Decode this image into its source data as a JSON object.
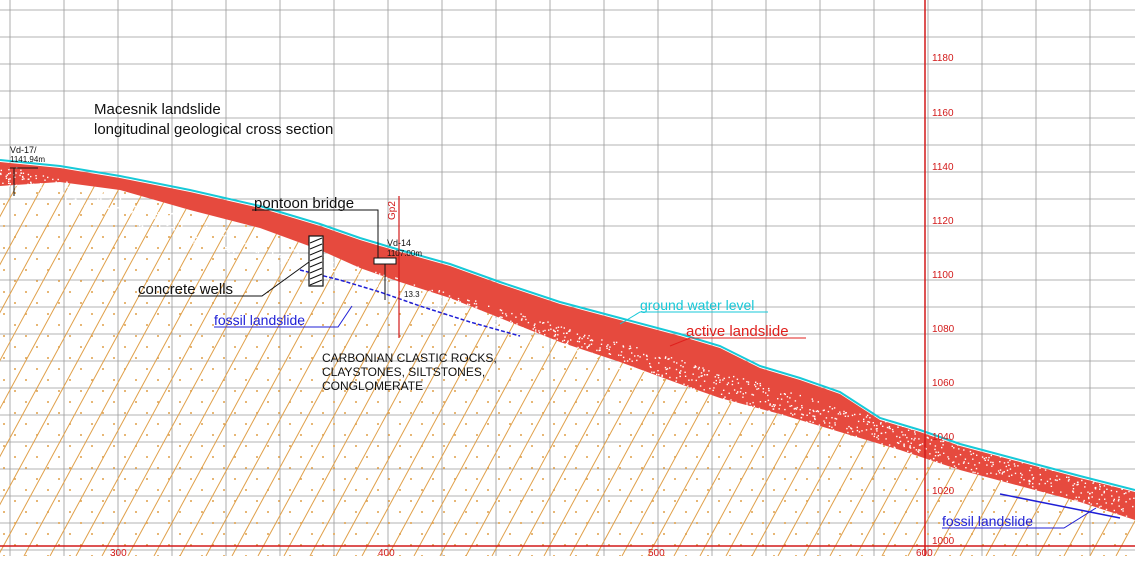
{
  "title": {
    "line1": "Macesnik landslide",
    "line2": "longitudinal geological cross section"
  },
  "boreholes": [
    {
      "name": "Vd-17/",
      "elevation": "1141.94m"
    },
    {
      "name": "Vd-14",
      "elevation": "1107.00m"
    }
  ],
  "section_marker": "Gp2",
  "labels": {
    "pontoon_bridge": "pontoon bridge",
    "concrete_wells": "concrete wells",
    "fossil_landslide_upper": "fossil landslide",
    "fossil_landslide_lower": "fossil landslide",
    "ground_water_level": "ground water level",
    "active_landslide": "active landslide",
    "small_depth": "13.3",
    "rock_line1": "CARBONIAN CLASTIC ROCKS,",
    "rock_line2": "CLAYSTONES, SILTSTONES,",
    "rock_line3": "CONGLOMERATE"
  },
  "elevation_axis": [
    "1180",
    "1160",
    "1140",
    "1120",
    "1100",
    "1080",
    "1060",
    "1040",
    "1020",
    "1000"
  ],
  "distance_axis": [
    "300",
    "400",
    "500",
    "600"
  ],
  "colors": {
    "grid": "#9a9a9a",
    "axis_red": "#d21a1a",
    "landslide_red": "#e0201d",
    "bedrock_hatch": "#e0a04a",
    "fossil_blue": "#1f1fd6",
    "water_cyan": "#17c9d8"
  }
}
